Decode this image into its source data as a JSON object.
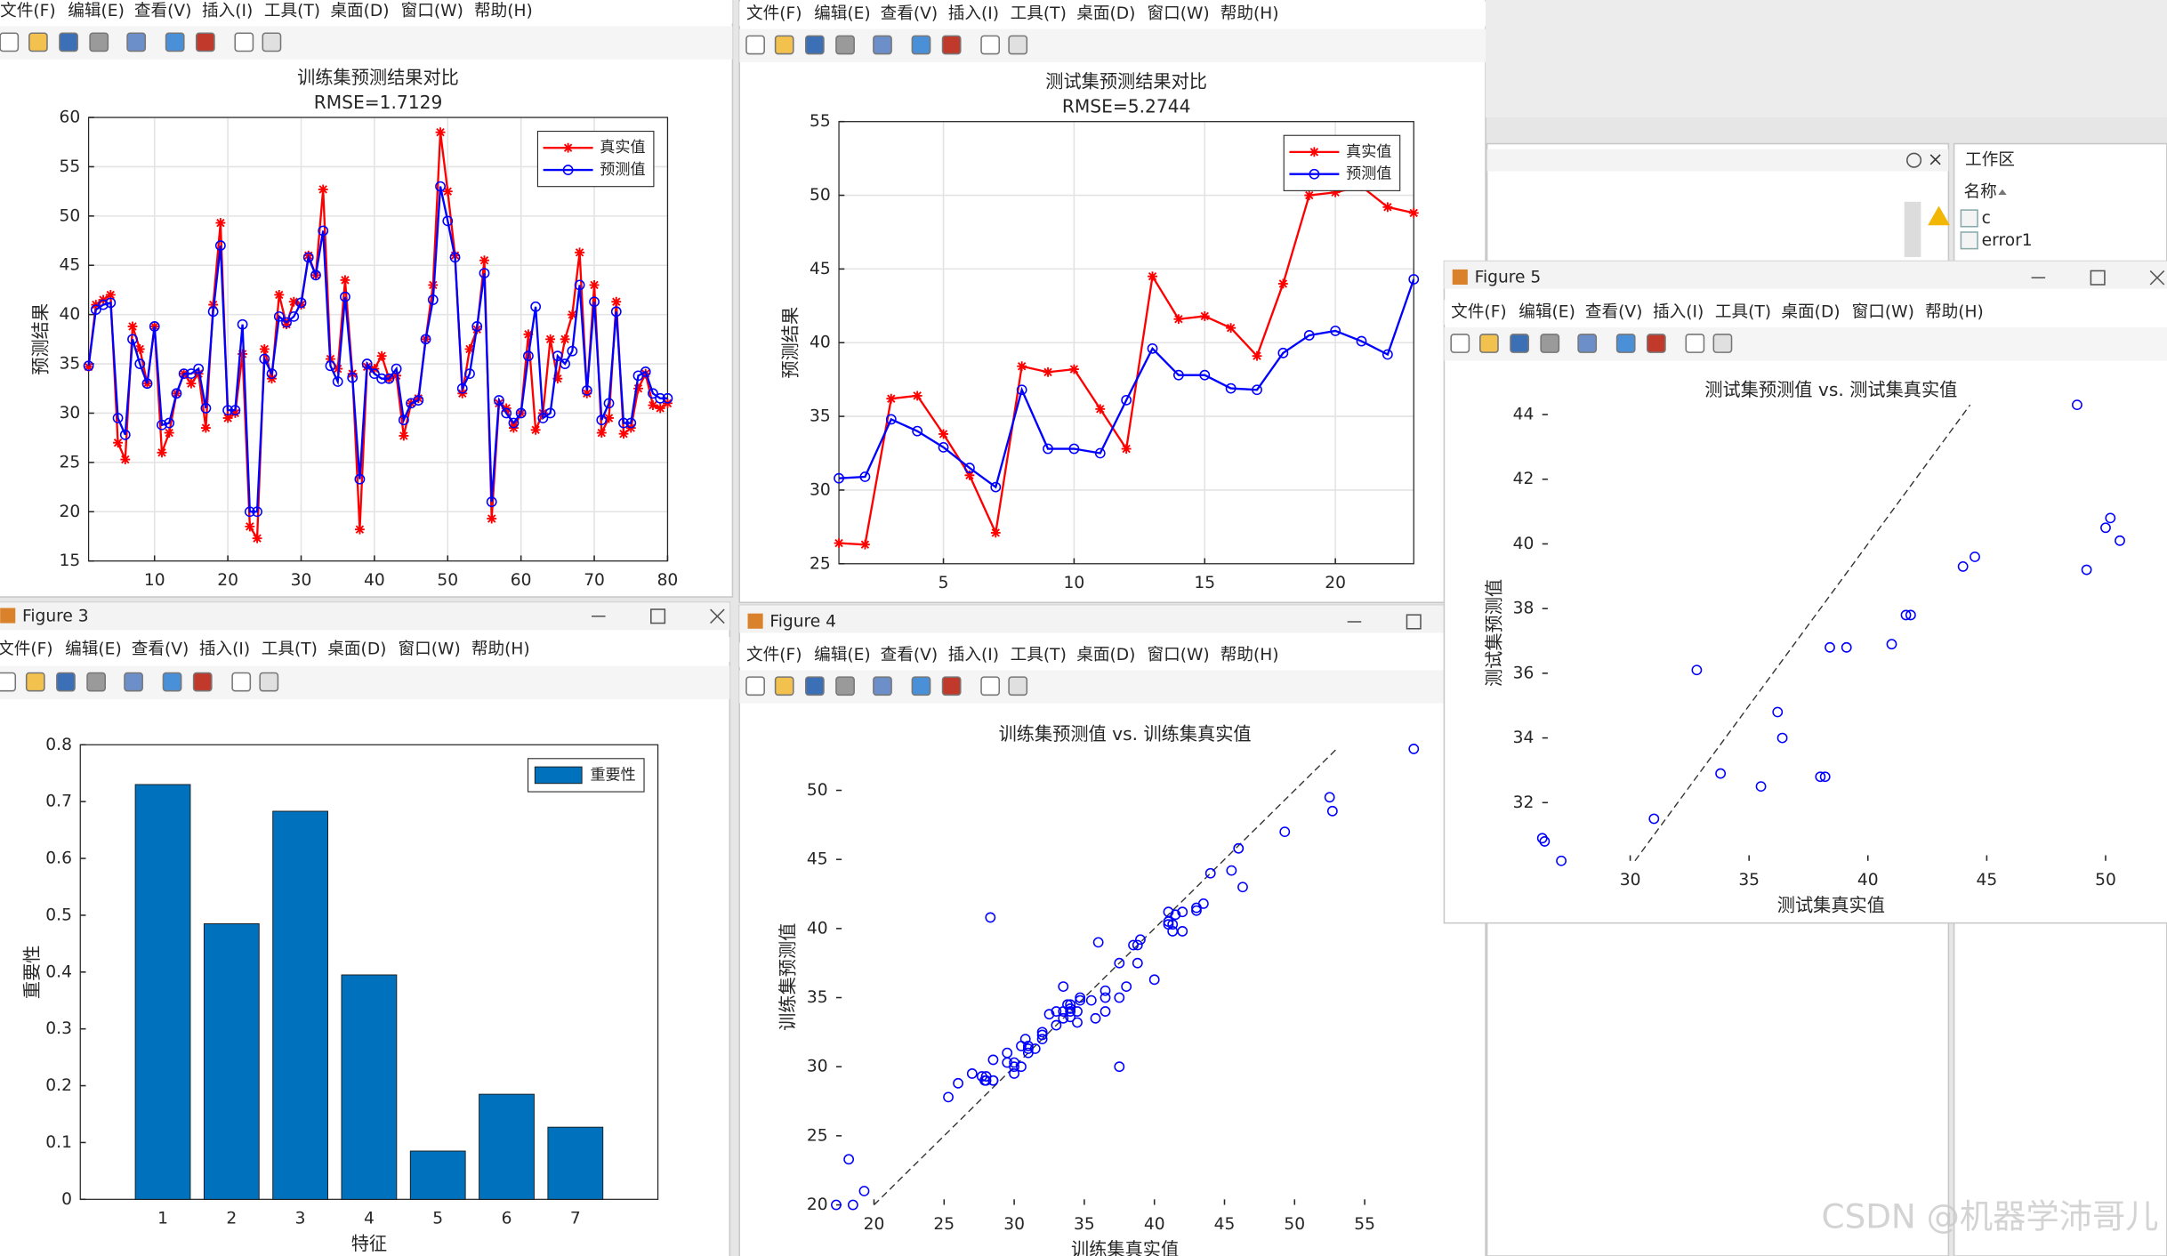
{
  "menu": [
    "文件(F)",
    "编辑(E)",
    "查看(V)",
    "插入(I)",
    "工具(T)",
    "桌面(D)",
    "窗口(W)",
    "帮助(H)"
  ],
  "window_titles": [
    "Figure 3",
    "Figure 4",
    "Figure 5"
  ],
  "workspace": {
    "title": "工作区",
    "column": "名称",
    "items": [
      "c",
      "error1"
    ]
  },
  "watermark": "CSDN @机器学沛哥儿",
  "chart_data": [
    {
      "type": "line",
      "title": "训练集预测结果对比",
      "subtitle": "RMSE=1.7129",
      "y_label": "预测结果",
      "grid": true,
      "box": true,
      "legend": "upper right",
      "x": [
        1,
        2,
        3,
        4,
        5,
        6,
        7,
        8,
        9,
        10,
        11,
        12,
        13,
        14,
        15,
        16,
        17,
        18,
        19,
        20,
        21,
        22,
        23,
        24,
        25,
        26,
        27,
        28,
        29,
        30,
        31,
        32,
        33,
        34,
        35,
        36,
        37,
        38,
        39,
        40,
        41,
        42,
        43,
        44,
        45,
        46,
        47,
        48,
        49,
        50,
        51,
        52,
        53,
        54,
        55,
        56,
        57,
        58,
        59,
        60,
        61,
        62,
        63,
        64,
        65,
        66,
        67,
        68,
        69,
        70,
        71,
        72,
        73,
        74,
        75,
        76,
        77,
        78,
        79,
        80
      ],
      "xlim": [
        1,
        80
      ],
      "xticks": [
        10,
        20,
        30,
        40,
        50,
        60,
        70,
        80
      ],
      "ylim": [
        15,
        60
      ],
      "yticks": [
        15,
        20,
        25,
        30,
        35,
        40,
        45,
        50,
        55,
        60
      ],
      "series": [
        {
          "name": "真实值",
          "color": "#ff0000",
          "marker": "star",
          "values": [
            34.7,
            41,
            41.5,
            42,
            27,
            25.3,
            38.8,
            36.5,
            33,
            38.8,
            26,
            28,
            32,
            34,
            33,
            34,
            28.5,
            41,
            49.3,
            29.5,
            30,
            36,
            18.5,
            17.3,
            36.5,
            33.5,
            42,
            39,
            41.3,
            41,
            46,
            44,
            52.7,
            35.5,
            34.5,
            43.5,
            34,
            18.2,
            34.7,
            34.5,
            35.8,
            33.5,
            33.8,
            27.7,
            31,
            31.5,
            37.5,
            43,
            58.5,
            52.5,
            46,
            32,
            36.5,
            38.5,
            45.5,
            19.3,
            31,
            30.5,
            28.5,
            30,
            38,
            28.3,
            30,
            37.5,
            33.5,
            37.5,
            40,
            46.3,
            32,
            43,
            28,
            29.5,
            41.3,
            27.9,
            28.5,
            32.5,
            34,
            30.8,
            30.5,
            31
          ]
        },
        {
          "name": "预测值",
          "color": "#0000ff",
          "marker": "circle",
          "values": [
            34.8,
            40.5,
            41,
            41.2,
            29.5,
            27.8,
            37.5,
            35,
            33,
            38.8,
            28.8,
            29,
            32,
            34,
            34,
            34.5,
            30.5,
            40.3,
            47,
            30.3,
            30.3,
            39,
            20,
            20,
            35.5,
            34,
            39.8,
            39.2,
            39.8,
            41.2,
            45.8,
            44,
            48.5,
            34.8,
            33.2,
            41.8,
            33.6,
            23.3,
            35,
            34,
            33.5,
            33.5,
            34.5,
            29.3,
            31,
            31.3,
            37.5,
            41.5,
            53,
            49.5,
            45.8,
            32.5,
            34,
            38.8,
            44.2,
            21,
            31.3,
            30,
            29,
            30,
            35.8,
            40.8,
            29.5,
            30,
            35.8,
            35,
            36.3,
            43,
            32.3,
            41.3,
            29.3,
            31,
            40.3,
            29,
            29,
            33.8,
            34.2,
            32,
            31.5,
            31.5
          ]
        }
      ]
    },
    {
      "type": "line",
      "title": "测试集预测结果对比",
      "subtitle": "RMSE=5.2744",
      "y_label": "预测结果",
      "grid": true,
      "box": true,
      "legend": "upper right",
      "x": [
        1,
        2,
        3,
        4,
        5,
        6,
        7,
        8,
        9,
        10,
        11,
        12,
        13,
        14,
        15,
        16,
        17,
        18,
        19,
        20,
        21,
        22,
        23
      ],
      "xlim": [
        1,
        23
      ],
      "xticks": [
        5,
        10,
        15,
        20
      ],
      "ylim": [
        25,
        55
      ],
      "yticks": [
        25,
        30,
        35,
        40,
        45,
        50,
        55
      ],
      "series": [
        {
          "name": "真实值",
          "color": "#ff0000",
          "marker": "star",
          "values": [
            26.4,
            26.3,
            36.2,
            36.4,
            33.8,
            31,
            27.1,
            38.4,
            38,
            38.2,
            35.5,
            32.8,
            44.5,
            41.6,
            41.8,
            41,
            39.1,
            44,
            50,
            50.2,
            50.6,
            49.2,
            48.8
          ]
        },
        {
          "name": "预测值",
          "color": "#0000ff",
          "marker": "circle",
          "values": [
            30.8,
            30.9,
            34.8,
            34,
            32.9,
            31.5,
            30.2,
            36.8,
            32.8,
            32.8,
            32.5,
            36.1,
            39.6,
            37.8,
            37.8,
            36.9,
            36.8,
            39.3,
            40.5,
            40.8,
            40.1,
            39.2,
            44.3
          ]
        }
      ]
    },
    {
      "type": "bar",
      "x_label": "特征",
      "y_label": "重要性",
      "box": true,
      "legend": "upper right",
      "categories": [
        "1",
        "2",
        "3",
        "4",
        "5",
        "6",
        "7"
      ],
      "ylim": [
        0,
        0.8
      ],
      "yticks": [
        0,
        0.1,
        0.2,
        0.3,
        0.4,
        0.5,
        0.6,
        0.7,
        0.8
      ],
      "series": [
        {
          "name": "重要性",
          "color": "#0072bd",
          "values": [
            0.73,
            0.485,
            0.683,
            0.395,
            0.085,
            0.185,
            0.127
          ]
        }
      ]
    },
    {
      "type": "scatter",
      "title": "训练集预测值 vs. 训练集真实值",
      "x_label": "训练集真实值",
      "y_label": "训练集预测值",
      "diagonal": true,
      "color": "#0000ff",
      "x": [
        34.7,
        41,
        41.5,
        42,
        27,
        25.3,
        38.8,
        36.5,
        33,
        38.8,
        26,
        28,
        32,
        34,
        33,
        34,
        28.5,
        41,
        49.3,
        29.5,
        30,
        36,
        18.5,
        17.3,
        36.5,
        33.5,
        42,
        39,
        41.3,
        41,
        46,
        44,
        52.7,
        35.5,
        34.5,
        43.5,
        34,
        18.2,
        34.7,
        34.5,
        35.8,
        33.5,
        33.8,
        27.7,
        31,
        31.5,
        37.5,
        43,
        58.5,
        52.5,
        46,
        32,
        36.5,
        38.5,
        45.5,
        19.3,
        31,
        30.5,
        28.5,
        30,
        38,
        28.3,
        30,
        37.5,
        33.5,
        37.5,
        40,
        46.3,
        32,
        43,
        28,
        29.5,
        41.3,
        27.9,
        28.5,
        32.5,
        34,
        30.8,
        30.5,
        31
      ],
      "values": [
        34.8,
        40.5,
        41,
        41.2,
        29.5,
        27.8,
        37.5,
        35,
        33,
        38.8,
        28.8,
        29,
        32,
        34,
        34,
        34.5,
        30.5,
        40.3,
        47,
        30.3,
        30.3,
        39,
        20,
        20,
        35.5,
        34,
        39.8,
        39.2,
        39.8,
        41.2,
        45.8,
        44,
        48.5,
        34.8,
        33.2,
        41.8,
        33.6,
        23.3,
        35,
        34,
        33.5,
        33.5,
        34.5,
        29.3,
        31,
        31.3,
        37.5,
        41.5,
        53,
        49.5,
        45.8,
        32.5,
        34,
        38.8,
        44.2,
        21,
        31.3,
        30,
        29,
        30,
        35.8,
        40.8,
        29.5,
        30,
        35.8,
        35,
        36.3,
        43,
        32.3,
        41.3,
        29.3,
        31,
        40.3,
        29,
        29,
        33.8,
        34.2,
        32,
        31.5,
        31.5
      ],
      "xlim": [
        17.3,
        58.5
      ],
      "xticks": [
        20,
        25,
        30,
        35,
        40,
        45,
        50,
        55
      ],
      "ylim": [
        20,
        53
      ],
      "yticks": [
        20,
        25,
        30,
        35,
        40,
        45,
        50
      ]
    },
    {
      "type": "scatter",
      "title": "测试集预测值 vs. 测试集真实值",
      "x_label": "测试集真实值",
      "y_label": "测试集预测值",
      "diagonal": true,
      "color": "#0000ff",
      "x": [
        26.4,
        26.3,
        36.2,
        36.4,
        33.8,
        31,
        27.1,
        38.4,
        38,
        38.2,
        35.5,
        32.8,
        44.5,
        41.6,
        41.8,
        41,
        39.1,
        44,
        50,
        50.2,
        50.6,
        49.2,
        48.8
      ],
      "values": [
        30.8,
        30.9,
        34.8,
        34,
        32.9,
        31.5,
        30.2,
        36.8,
        32.8,
        32.8,
        32.5,
        36.1,
        39.6,
        37.8,
        37.8,
        36.9,
        36.8,
        39.3,
        40.5,
        40.8,
        40.1,
        39.2,
        44.3
      ],
      "xlim": [
        26.3,
        50.6
      ],
      "xticks": [
        30,
        35,
        40,
        45,
        50
      ],
      "ylim": [
        30.2,
        44.3
      ],
      "yticks": [
        32,
        34,
        36,
        38,
        40,
        42,
        44
      ]
    }
  ]
}
